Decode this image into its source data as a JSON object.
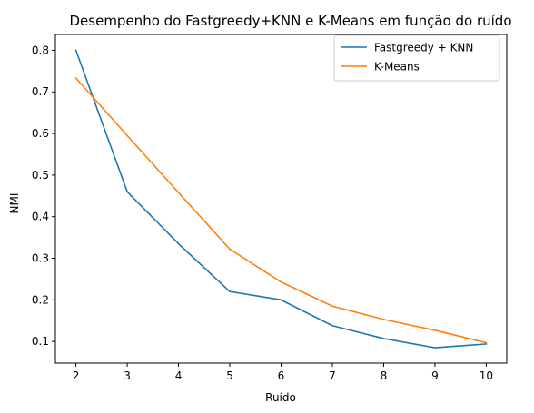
{
  "chart_data": {
    "type": "line",
    "title": "Desempenho do Fastgreedy+KNN e K-Means em função do ruído",
    "xlabel": "Ruído",
    "ylabel": "NMI",
    "x": [
      2,
      3,
      4,
      5,
      6,
      7,
      8,
      9,
      10
    ],
    "xlim": [
      1.6,
      10.4
    ],
    "ylim": [
      0.048,
      0.838
    ],
    "xticks": [
      2,
      3,
      4,
      5,
      6,
      7,
      8,
      9,
      10
    ],
    "yticks": [
      0.1,
      0.2,
      0.3,
      0.4,
      0.5,
      0.6,
      0.7,
      0.8
    ],
    "grid": false,
    "legend_position": "top-right",
    "series": [
      {
        "name": "Fastgreedy + KNN",
        "color": "#1f77b4",
        "values": [
          0.8,
          0.46,
          0.335,
          0.22,
          0.2,
          0.138,
          0.107,
          0.085,
          0.094
        ]
      },
      {
        "name": "K-Means",
        "color": "#ff7f0e",
        "values": [
          0.733,
          0.595,
          0.458,
          0.322,
          0.243,
          0.185,
          0.153,
          0.127,
          0.097
        ]
      }
    ]
  }
}
